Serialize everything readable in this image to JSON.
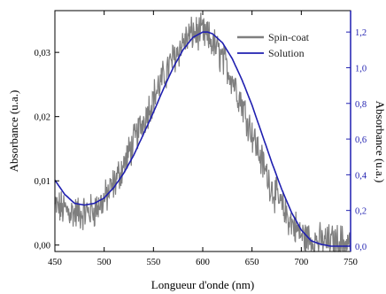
{
  "chart_data": {
    "type": "line",
    "xlabel": "Longueur d'onde (nm)",
    "ylabel_left": "Absorbance (u.a.)",
    "ylabel_right": "Absorbance (u.a.)",
    "xlim": [
      450,
      750
    ],
    "ylim_left": [
      -0.001,
      0.0365
    ],
    "ylim_right": [
      -0.03,
      1.32
    ],
    "x_ticks": [
      "450",
      "500",
      "550",
      "600",
      "650",
      "700",
      "750"
    ],
    "y_left_ticks": [
      "0,00",
      "0,01",
      "0,02",
      "0,03"
    ],
    "y_right_ticks": [
      "0,0",
      "0,2",
      "0,4",
      "0,6",
      "0,8",
      "1,0",
      "1,2"
    ],
    "legend_position": "top-right",
    "colors": {
      "spin_coat": "#7f7f7f",
      "solution": "#1f1fb0",
      "right_axis": "#1f1fb0"
    },
    "series": [
      {
        "name": "Spin-coat",
        "axis": "left",
        "noisy": true,
        "x": [
          450,
          460,
          470,
          480,
          490,
          500,
          510,
          520,
          530,
          540,
          550,
          560,
          570,
          580,
          590,
          600,
          610,
          620,
          630,
          640,
          650,
          660,
          670,
          680,
          690,
          700,
          710,
          720,
          730,
          740,
          750
        ],
        "values": [
          0.006,
          0.0055,
          0.005,
          0.005,
          0.0055,
          0.007,
          0.0095,
          0.0125,
          0.016,
          0.0195,
          0.023,
          0.026,
          0.029,
          0.0315,
          0.033,
          0.033,
          0.0315,
          0.029,
          0.026,
          0.022,
          0.0175,
          0.013,
          0.009,
          0.006,
          0.0035,
          0.0015,
          0.0008,
          0.0005,
          0.0005,
          0.0005,
          0.0005
        ]
      },
      {
        "name": "Solution",
        "axis": "right",
        "noisy": false,
        "x": [
          450,
          460,
          470,
          480,
          490,
          500,
          510,
          520,
          530,
          540,
          550,
          560,
          570,
          580,
          590,
          600,
          605,
          610,
          620,
          630,
          640,
          650,
          660,
          670,
          680,
          690,
          700,
          710,
          720,
          730,
          740,
          750
        ],
        "values": [
          0.37,
          0.29,
          0.24,
          0.23,
          0.24,
          0.27,
          0.33,
          0.41,
          0.51,
          0.63,
          0.75,
          0.88,
          1.0,
          1.1,
          1.17,
          1.2,
          1.2,
          1.19,
          1.14,
          1.05,
          0.93,
          0.79,
          0.63,
          0.47,
          0.32,
          0.19,
          0.09,
          0.03,
          0.01,
          0.0,
          0.0,
          0.0
        ]
      }
    ]
  }
}
